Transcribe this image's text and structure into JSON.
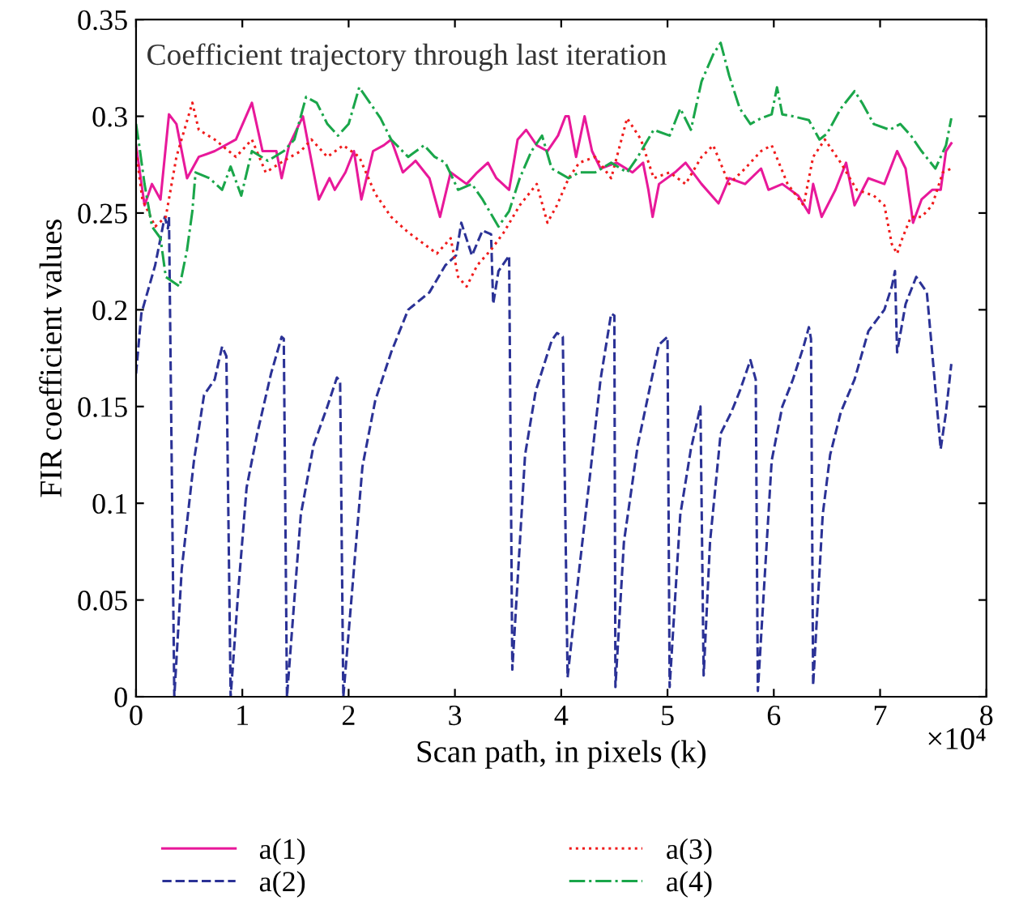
{
  "chart_data": {
    "type": "line",
    "title": "Coefficient trajectory through last iteration",
    "xlabel": "Scan path, in pixels (k)",
    "ylabel": "FIR coefficient values",
    "annotations": [
      "×10⁴"
    ],
    "xlim": [
      0,
      8
    ],
    "ylim": [
      0,
      0.35
    ],
    "xticks": [
      0,
      1,
      2,
      3,
      4,
      5,
      6,
      7,
      8
    ],
    "yticks": [
      0,
      0.05,
      0.1,
      0.15,
      0.2,
      0.25,
      0.3,
      0.35
    ],
    "grid": false,
    "legend": "bottom",
    "marker": "none",
    "series": [
      {
        "name": "a(1)",
        "color": "#e8199a",
        "line_style": "solid",
        "x": [
          0,
          0.08,
          0.15,
          0.23,
          0.31,
          0.38,
          0.48,
          0.59,
          0.74,
          0.94,
          1.09,
          1.19,
          1.32,
          1.37,
          1.44,
          1.57,
          1.65,
          1.72,
          1.82,
          1.87,
          1.97,
          2.05,
          2.12,
          2.23,
          2.33,
          2.4,
          2.51,
          2.63,
          2.76,
          2.86,
          2.96,
          3.11,
          3.21,
          3.31,
          3.39,
          3.51,
          3.59,
          3.67,
          3.77,
          3.87,
          3.97,
          4.04,
          4.07,
          4.14,
          4.22,
          4.29,
          4.37,
          4.52,
          4.67,
          4.77,
          4.82,
          4.86,
          4.92,
          5.07,
          5.17,
          5.32,
          5.48,
          5.58,
          5.73,
          5.88,
          5.95,
          6.08,
          6.23,
          6.33,
          6.37,
          6.45,
          6.58,
          6.68,
          6.76,
          6.89,
          7.04,
          7.16,
          7.24,
          7.31,
          7.39,
          7.49,
          7.57,
          7.62,
          7.67
        ],
        "values": [
          0.285,
          0.254,
          0.265,
          0.257,
          0.301,
          0.296,
          0.268,
          0.279,
          0.282,
          0.288,
          0.307,
          0.282,
          0.282,
          0.268,
          0.285,
          0.3,
          0.277,
          0.257,
          0.268,
          0.262,
          0.271,
          0.282,
          0.257,
          0.282,
          0.285,
          0.288,
          0.271,
          0.277,
          0.268,
          0.248,
          0.271,
          0.265,
          0.271,
          0.276,
          0.268,
          0.262,
          0.288,
          0.293,
          0.285,
          0.282,
          0.29,
          0.3,
          0.3,
          0.279,
          0.3,
          0.282,
          0.273,
          0.276,
          0.271,
          0.276,
          0.262,
          0.248,
          0.265,
          0.271,
          0.276,
          0.265,
          0.255,
          0.268,
          0.265,
          0.273,
          0.262,
          0.265,
          0.259,
          0.25,
          0.265,
          0.248,
          0.262,
          0.276,
          0.254,
          0.268,
          0.265,
          0.282,
          0.273,
          0.245,
          0.257,
          0.262,
          0.262,
          0.282,
          0.286
        ]
      },
      {
        "name": "a(2)",
        "color": "#2b3296",
        "line_style": "dashed",
        "x": [
          0,
          0.05,
          0.18,
          0.27,
          0.3,
          0.31,
          0.36,
          0.43,
          0.545,
          0.64,
          0.74,
          0.81,
          0.85,
          0.89,
          0.965,
          1.04,
          1.14,
          1.27,
          1.37,
          1.39,
          1.42,
          1.55,
          1.67,
          1.8,
          1.89,
          1.92,
          1.95,
          2.13,
          2.25,
          2.4,
          2.56,
          2.76,
          2.91,
          3.01,
          3.06,
          3.16,
          3.26,
          3.34,
          3.36,
          3.41,
          3.51,
          3.54,
          3.66,
          3.76,
          3.91,
          3.96,
          4.015,
          4.06,
          4.17,
          4.27,
          4.37,
          4.47,
          4.5,
          4.51,
          4.59,
          4.72,
          4.85,
          4.92,
          5.0,
          5.02,
          5.12,
          5.22,
          5.31,
          5.34,
          5.4,
          5.5,
          5.6,
          5.68,
          5.78,
          5.83,
          5.85,
          5.98,
          6.08,
          6.18,
          6.28,
          6.33,
          6.35,
          6.37,
          6.46,
          6.53,
          6.63,
          6.76,
          6.89,
          7.04,
          7.11,
          7.14,
          7.16,
          7.24,
          7.34,
          7.44,
          7.49,
          7.57,
          7.62,
          7.67
        ],
        "values": [
          0.167,
          0.198,
          0.223,
          0.248,
          0.242,
          0.248,
          0.0,
          0.066,
          0.122,
          0.156,
          0.164,
          0.181,
          0.176,
          0.0,
          0.057,
          0.108,
          0.136,
          0.167,
          0.186,
          0.185,
          0.0,
          0.094,
          0.13,
          0.15,
          0.165,
          0.163,
          0.0,
          0.119,
          0.153,
          0.178,
          0.2,
          0.209,
          0.223,
          0.228,
          0.245,
          0.228,
          0.241,
          0.239,
          0.203,
          0.22,
          0.228,
          0.014,
          0.125,
          0.158,
          0.184,
          0.188,
          0.186,
          0.01,
          0.066,
          0.114,
          0.164,
          0.198,
          0.197,
          0.005,
          0.08,
          0.13,
          0.164,
          0.182,
          0.186,
          0.005,
          0.094,
          0.128,
          0.15,
          0.011,
          0.08,
          0.136,
          0.147,
          0.158,
          0.174,
          0.164,
          0.003,
          0.122,
          0.15,
          0.164,
          0.181,
          0.191,
          0.185,
          0.006,
          0.094,
          0.125,
          0.147,
          0.164,
          0.189,
          0.2,
          0.212,
          0.22,
          0.178,
          0.203,
          0.217,
          0.209,
          0.178,
          0.128,
          0.147,
          0.172
        ]
      },
      {
        "name": "a(3)",
        "color": "#f01c1c",
        "line_style": "dotted",
        "x": [
          0,
          0.06,
          0.18,
          0.28,
          0.38,
          0.53,
          0.59,
          0.74,
          0.94,
          1.09,
          1.22,
          1.39,
          1.55,
          1.65,
          1.8,
          1.95,
          2.1,
          2.25,
          2.4,
          2.56,
          2.71,
          2.83,
          2.96,
          3.03,
          3.11,
          3.21,
          3.34,
          3.46,
          3.61,
          3.77,
          3.87,
          3.96,
          4.07,
          4.17,
          4.32,
          4.47,
          4.62,
          4.75,
          4.87,
          5.02,
          5.17,
          5.32,
          5.43,
          5.58,
          5.73,
          5.88,
          5.98,
          6.13,
          6.28,
          6.37,
          6.48,
          6.63,
          6.78,
          6.94,
          7.04,
          7.11,
          7.16,
          7.21,
          7.29,
          7.39,
          7.49,
          7.59,
          7.67
        ],
        "values": [
          0.282,
          0.257,
          0.243,
          0.248,
          0.279,
          0.307,
          0.293,
          0.288,
          0.279,
          0.288,
          0.271,
          0.277,
          0.282,
          0.288,
          0.279,
          0.285,
          0.279,
          0.26,
          0.248,
          0.24,
          0.234,
          0.229,
          0.237,
          0.217,
          0.212,
          0.223,
          0.231,
          0.24,
          0.254,
          0.265,
          0.245,
          0.254,
          0.268,
          0.276,
          0.279,
          0.268,
          0.299,
          0.288,
          0.268,
          0.271,
          0.265,
          0.279,
          0.285,
          0.265,
          0.273,
          0.282,
          0.285,
          0.265,
          0.254,
          0.279,
          0.288,
          0.276,
          0.262,
          0.259,
          0.254,
          0.234,
          0.229,
          0.237,
          0.248,
          0.248,
          0.254,
          0.271,
          0.273
        ]
      },
      {
        "name": "a(4)",
        "color": "#1aa64a",
        "line_style": "dashdot",
        "x": [
          0,
          0.03,
          0.08,
          0.15,
          0.23,
          0.28,
          0.41,
          0.48,
          0.53,
          0.56,
          0.69,
          0.81,
          0.89,
          0.99,
          1.09,
          1.24,
          1.39,
          1.49,
          1.6,
          1.7,
          1.8,
          1.9,
          2.0,
          2.1,
          2.2,
          2.3,
          2.4,
          2.56,
          2.71,
          2.81,
          2.91,
          3.03,
          3.16,
          3.26,
          3.41,
          3.51,
          3.61,
          3.72,
          3.82,
          3.91,
          4.07,
          4.17,
          4.32,
          4.47,
          4.62,
          4.72,
          4.87,
          5.02,
          5.12,
          5.22,
          5.32,
          5.43,
          5.5,
          5.58,
          5.68,
          5.78,
          5.88,
          5.98,
          6.03,
          6.08,
          6.18,
          6.33,
          6.43,
          6.5,
          6.63,
          6.76,
          6.83,
          6.94,
          7.09,
          7.19,
          7.29,
          7.39,
          7.52,
          7.62,
          7.67
        ],
        "values": [
          0.296,
          0.285,
          0.265,
          0.243,
          0.237,
          0.217,
          0.212,
          0.231,
          0.251,
          0.271,
          0.268,
          0.262,
          0.274,
          0.259,
          0.282,
          0.277,
          0.282,
          0.288,
          0.31,
          0.307,
          0.296,
          0.29,
          0.296,
          0.315,
          0.307,
          0.299,
          0.288,
          0.279,
          0.285,
          0.279,
          0.276,
          0.262,
          0.265,
          0.257,
          0.243,
          0.251,
          0.268,
          0.282,
          0.29,
          0.273,
          0.268,
          0.271,
          0.271,
          0.276,
          0.271,
          0.279,
          0.293,
          0.29,
          0.304,
          0.293,
          0.318,
          0.332,
          0.338,
          0.321,
          0.304,
          0.296,
          0.299,
          0.301,
          0.315,
          0.301,
          0.3,
          0.298,
          0.288,
          0.291,
          0.304,
          0.313,
          0.307,
          0.296,
          0.293,
          0.296,
          0.29,
          0.282,
          0.273,
          0.285,
          0.299
        ]
      }
    ]
  }
}
